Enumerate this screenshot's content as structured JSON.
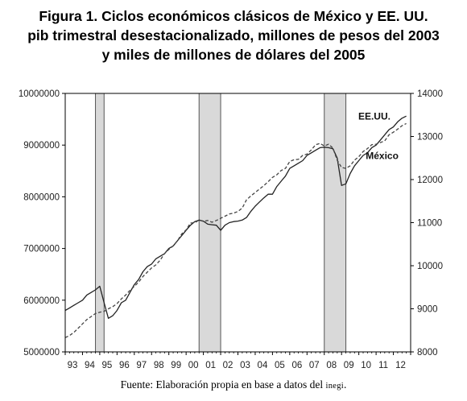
{
  "figure": {
    "title_lines": [
      "Figura 1. Ciclos económicos clásicos de México y EE. UU.",
      "pib trimestral desestacionalizado, millones de pesos del 2003",
      "y miles de millones de dólares del 2005"
    ],
    "source_prefix": "Fuente: Elaboración propia en base a datos del",
    "source_org": "inegi",
    "source_suffix": "."
  },
  "chart_data": {
    "type": "line",
    "x_tick_labels": [
      "93",
      "94",
      "95",
      "96",
      "97",
      "98",
      "99",
      "00",
      "01",
      "02",
      "03",
      "04",
      "05",
      "06",
      "07",
      "08",
      "09",
      "10",
      "11",
      "12"
    ],
    "xlim": [
      1993.0,
      2013.0
    ],
    "y_left": {
      "lim": [
        5000000,
        10000000
      ],
      "ticks": [
        5000000,
        6000000,
        7000000,
        8000000,
        9000000,
        10000000
      ],
      "tick_labels": [
        "5000000",
        "6000000",
        "7000000",
        "8000000",
        "9000000",
        "10000000"
      ]
    },
    "y_right": {
      "lim": [
        8000,
        14000
      ],
      "ticks": [
        8000,
        9000,
        10000,
        11000,
        12000,
        13000,
        14000
      ],
      "tick_labels": [
        "8000",
        "9000",
        "10000",
        "11000",
        "12000",
        "13000",
        "14000"
      ]
    },
    "recessions": [
      {
        "start": 1994.75,
        "end": 1995.25
      },
      {
        "start": 2000.75,
        "end": 2002.0
      },
      {
        "start": 2008.0,
        "end": 2009.25
      }
    ],
    "grid": false,
    "legend": "inline labels",
    "series": [
      {
        "name": "México",
        "axis": "left",
        "style": "solid",
        "color": "#222222",
        "points": [
          [
            1993.0,
            5800000
          ],
          [
            1993.25,
            5850000
          ],
          [
            1993.5,
            5900000
          ],
          [
            1993.75,
            5950000
          ],
          [
            1994.0,
            6000000
          ],
          [
            1994.25,
            6100000
          ],
          [
            1994.5,
            6150000
          ],
          [
            1994.75,
            6200000
          ],
          [
            1995.0,
            6270000
          ],
          [
            1995.25,
            5950000
          ],
          [
            1995.5,
            5650000
          ],
          [
            1995.75,
            5700000
          ],
          [
            1996.0,
            5800000
          ],
          [
            1996.25,
            5950000
          ],
          [
            1996.5,
            6000000
          ],
          [
            1996.75,
            6150000
          ],
          [
            1997.0,
            6300000
          ],
          [
            1997.25,
            6400000
          ],
          [
            1997.5,
            6550000
          ],
          [
            1997.75,
            6650000
          ],
          [
            1998.0,
            6700000
          ],
          [
            1998.25,
            6800000
          ],
          [
            1998.5,
            6850000
          ],
          [
            1998.75,
            6900000
          ],
          [
            1999.0,
            7000000
          ],
          [
            1999.25,
            7050000
          ],
          [
            1999.5,
            7150000
          ],
          [
            1999.75,
            7250000
          ],
          [
            2000.0,
            7350000
          ],
          [
            2000.25,
            7450000
          ],
          [
            2000.5,
            7520000
          ],
          [
            2000.75,
            7550000
          ],
          [
            2001.0,
            7530000
          ],
          [
            2001.25,
            7470000
          ],
          [
            2001.5,
            7460000
          ],
          [
            2001.75,
            7450000
          ],
          [
            2002.0,
            7350000
          ],
          [
            2002.25,
            7450000
          ],
          [
            2002.5,
            7500000
          ],
          [
            2002.75,
            7520000
          ],
          [
            2003.0,
            7530000
          ],
          [
            2003.25,
            7550000
          ],
          [
            2003.5,
            7600000
          ],
          [
            2003.75,
            7720000
          ],
          [
            2004.0,
            7820000
          ],
          [
            2004.25,
            7900000
          ],
          [
            2004.5,
            7980000
          ],
          [
            2004.75,
            8050000
          ],
          [
            2005.0,
            8050000
          ],
          [
            2005.25,
            8200000
          ],
          [
            2005.5,
            8300000
          ],
          [
            2005.75,
            8400000
          ],
          [
            2006.0,
            8550000
          ],
          [
            2006.25,
            8600000
          ],
          [
            2006.5,
            8650000
          ],
          [
            2006.75,
            8700000
          ],
          [
            2007.0,
            8800000
          ],
          [
            2007.25,
            8850000
          ],
          [
            2007.5,
            8900000
          ],
          [
            2007.75,
            8950000
          ],
          [
            2008.0,
            8960000
          ],
          [
            2008.25,
            8950000
          ],
          [
            2008.5,
            8930000
          ],
          [
            2008.75,
            8750000
          ],
          [
            2009.0,
            8220000
          ],
          [
            2009.25,
            8250000
          ],
          [
            2009.5,
            8450000
          ],
          [
            2009.75,
            8600000
          ],
          [
            2010.0,
            8700000
          ],
          [
            2010.25,
            8800000
          ],
          [
            2010.5,
            8850000
          ],
          [
            2010.75,
            8950000
          ],
          [
            2011.0,
            9000000
          ],
          [
            2011.25,
            9100000
          ],
          [
            2011.5,
            9200000
          ],
          [
            2011.75,
            9300000
          ],
          [
            2012.0,
            9350000
          ],
          [
            2012.25,
            9450000
          ],
          [
            2012.5,
            9520000
          ],
          [
            2012.75,
            9560000
          ]
        ]
      },
      {
        "name": "EE.UU.",
        "axis": "right",
        "style": "dashed",
        "color": "#444444",
        "points": [
          [
            1993.0,
            8330
          ],
          [
            1993.25,
            8380
          ],
          [
            1993.5,
            8450
          ],
          [
            1993.75,
            8550
          ],
          [
            1994.0,
            8650
          ],
          [
            1994.25,
            8750
          ],
          [
            1994.5,
            8820
          ],
          [
            1994.75,
            8890
          ],
          [
            1995.0,
            8920
          ],
          [
            1995.25,
            8940
          ],
          [
            1995.5,
            9000
          ],
          [
            1995.75,
            9050
          ],
          [
            1996.0,
            9120
          ],
          [
            1996.25,
            9230
          ],
          [
            1996.5,
            9320
          ],
          [
            1996.75,
            9430
          ],
          [
            1997.0,
            9520
          ],
          [
            1997.25,
            9620
          ],
          [
            1997.5,
            9750
          ],
          [
            1997.75,
            9850
          ],
          [
            1998.0,
            9950
          ],
          [
            1998.25,
            10020
          ],
          [
            1998.5,
            10130
          ],
          [
            1998.75,
            10280
          ],
          [
            1999.0,
            10380
          ],
          [
            1999.25,
            10460
          ],
          [
            1999.5,
            10580
          ],
          [
            1999.75,
            10740
          ],
          [
            2000.0,
            10830
          ],
          [
            2000.25,
            10990
          ],
          [
            2000.5,
            11000
          ],
          [
            2000.75,
            11060
          ],
          [
            2001.0,
            11030
          ],
          [
            2001.25,
            11050
          ],
          [
            2001.5,
            11010
          ],
          [
            2001.75,
            11050
          ],
          [
            2002.0,
            11100
          ],
          [
            2002.25,
            11150
          ],
          [
            2002.5,
            11200
          ],
          [
            2002.75,
            11220
          ],
          [
            2003.0,
            11260
          ],
          [
            2003.25,
            11340
          ],
          [
            2003.5,
            11530
          ],
          [
            2003.75,
            11620
          ],
          [
            2004.0,
            11700
          ],
          [
            2004.25,
            11780
          ],
          [
            2004.5,
            11860
          ],
          [
            2004.75,
            11950
          ],
          [
            2005.0,
            12050
          ],
          [
            2005.25,
            12110
          ],
          [
            2005.5,
            12210
          ],
          [
            2005.75,
            12260
          ],
          [
            2006.0,
            12420
          ],
          [
            2006.25,
            12460
          ],
          [
            2006.5,
            12470
          ],
          [
            2006.75,
            12560
          ],
          [
            2007.0,
            12590
          ],
          [
            2007.25,
            12690
          ],
          [
            2007.5,
            12810
          ],
          [
            2007.75,
            12840
          ],
          [
            2008.0,
            12780
          ],
          [
            2008.25,
            12820
          ],
          [
            2008.5,
            12730
          ],
          [
            2008.75,
            12450
          ],
          [
            2009.0,
            12280
          ],
          [
            2009.25,
            12260
          ],
          [
            2009.5,
            12320
          ],
          [
            2009.75,
            12450
          ],
          [
            2010.0,
            12530
          ],
          [
            2010.25,
            12650
          ],
          [
            2010.5,
            12720
          ],
          [
            2010.75,
            12810
          ],
          [
            2011.0,
            12820
          ],
          [
            2011.25,
            12860
          ],
          [
            2011.5,
            12900
          ],
          [
            2011.75,
            13040
          ],
          [
            2012.0,
            13100
          ],
          [
            2012.25,
            13170
          ],
          [
            2012.5,
            13250
          ],
          [
            2012.75,
            13300
          ]
        ]
      }
    ],
    "annotations": [
      {
        "text": "EE.UU.",
        "x": 2010.9,
        "y_right": 13390
      },
      {
        "text": "México",
        "x": 2011.35,
        "y_right": 12480
      }
    ]
  }
}
